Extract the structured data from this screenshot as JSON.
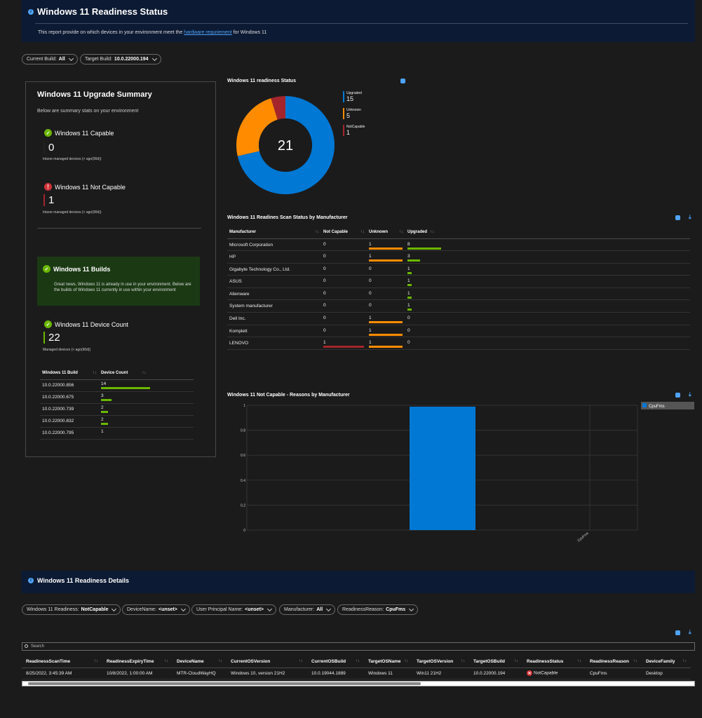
{
  "header": {
    "title": "Windows 11 Readiness Status",
    "desc_before": "This report provide on which devices in your environment meet the ",
    "desc_link": "hardware requriement",
    "desc_after": " for Windows 11"
  },
  "filters": {
    "current_build_label": "Current Build:",
    "current_build_value": "All",
    "target_build_label": "Target Build:",
    "target_build_value": "10.0.22000.194"
  },
  "summary": {
    "title": "Windows 11 Upgrade Summary",
    "desc": "Below are summary stats on your environment",
    "capable_title": "Windows 11 Capable",
    "capable_value": "0",
    "capable_sub": "Intune managed devices (> ago(90d))",
    "notcapable_title": "Windows 11 Not Capable",
    "notcapable_value": "1",
    "notcapable_sub": "Intune managed devices (> ago(90d))",
    "builds_title": "Windows 11 Builds",
    "builds_text": "Great news, Windows 11 is already in use in your environment. Below are the builds of Windows 11 currently in use within your environment",
    "devcount_title": "Windows 11 Device Count",
    "devcount_value": "22",
    "devcount_sub": "Managed devices (> ago(90d))",
    "builds_table": {
      "headers": [
        "Windows 11 Build",
        "Device Count"
      ],
      "rows": [
        {
          "build": "10.0.22000.856",
          "count": 14
        },
        {
          "build": "10.0.22000.675",
          "count": 3
        },
        {
          "build": "10.0.22000.739",
          "count": 2
        },
        {
          "build": "10.0.22000.832",
          "count": 2
        },
        {
          "build": "10.0.22000.795",
          "count": 1
        }
      ]
    }
  },
  "donut": {
    "title": "Windows 11 readiness Status",
    "total": "21",
    "items": [
      {
        "label": "Upgraded",
        "value": 15,
        "color": "#0078d4"
      },
      {
        "label": "Unknown",
        "value": 5,
        "color": "#ff8c00"
      },
      {
        "label": "NotCapable",
        "value": 1,
        "color": "#a4262c"
      }
    ]
  },
  "manu": {
    "title": "Windows 11 Readines Scan Status by Manufacturer",
    "headers": [
      "Manufacturer",
      "Not Capable",
      "Unknown",
      "Upgraded"
    ],
    "rows": [
      {
        "name": "Microsoft Corporation",
        "nc": 0,
        "un": 1,
        "up": 8
      },
      {
        "name": "HP",
        "nc": 0,
        "un": 1,
        "up": 3
      },
      {
        "name": "Gigabyte Technology Co., Ltd.",
        "nc": 0,
        "un": 0,
        "up": 1
      },
      {
        "name": "ASUS",
        "nc": 0,
        "un": 0,
        "up": 1
      },
      {
        "name": "Alienware",
        "nc": 0,
        "un": 0,
        "up": 1
      },
      {
        "name": "System manufacturer",
        "nc": 0,
        "un": 0,
        "up": 1
      },
      {
        "name": "Dell Inc.",
        "nc": 0,
        "un": 1,
        "up": 0
      },
      {
        "name": "Komplett",
        "nc": 0,
        "un": 1,
        "up": 0
      },
      {
        "name": "LENOVO",
        "nc": 1,
        "un": 1,
        "up": 0
      }
    ],
    "colors": {
      "nc": "#a4262c",
      "un": "#ff8c00",
      "up": "#6bb700"
    }
  },
  "chart_data": {
    "type": "bar",
    "title": "Windows 11 Not Capable - Reasons by Manufacturer",
    "categories": [
      "CpuFms"
    ],
    "series": [
      {
        "name": "CpuFms",
        "values": [
          1
        ]
      }
    ],
    "ylim": [
      0,
      1
    ],
    "yticks": [
      "1",
      "0.8",
      "0.6",
      "0.4",
      "0.2",
      "0"
    ],
    "legend": "top-right",
    "color": "#0078d4"
  },
  "details": {
    "title": "Windows 11 Readiness Details",
    "filters": [
      {
        "label": "Windows 11 Readiness:",
        "value": "NotCapable"
      },
      {
        "label": "DeviceName:",
        "value": "<unset>"
      },
      {
        "label": "User Principal Name:",
        "value": "<unset>"
      },
      {
        "label": "Manufacturer:",
        "value": "All"
      },
      {
        "label": "ReadinessReason:",
        "value": "CpuFms"
      }
    ],
    "search_placeholder": "Search",
    "headers": [
      "ReadinessScanTime",
      "ReadinessExpiryTime",
      "DeviceName",
      "CurrentOSVersion",
      "CurrentOSBuild",
      "TargetOSName",
      "TargetOSVersion",
      "TargetOSBuild",
      "ReadinessStatus",
      "ReadinessReason",
      "DeviceFamily"
    ],
    "row": {
      "scan": "8/25/2022, 3:45:39 AM",
      "expiry": "10/8/2022, 1:00:00 AM",
      "device": "MTR-CloudWayHQ",
      "cur_ver": "Windows 10, version 21H2",
      "cur_build": "10.0.19044.1889",
      "tgt_name": "Windows 11",
      "tgt_ver": "Win11 21H2",
      "tgt_build": "10.0.22000.194",
      "status": "NotCapable",
      "reason": "CpuFms",
      "family": "Desktop"
    }
  }
}
